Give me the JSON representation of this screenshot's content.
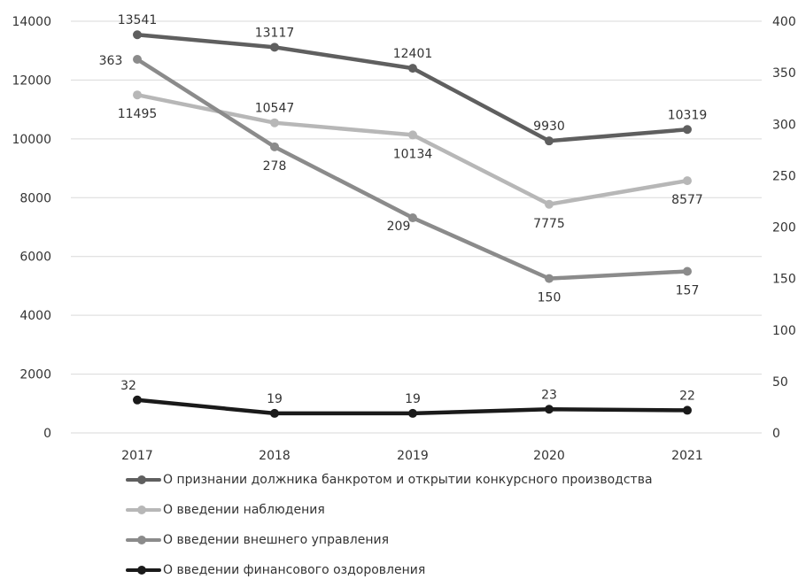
{
  "chart_data": {
    "type": "line",
    "categories": [
      "2017",
      "2018",
      "2019",
      "2020",
      "2021"
    ],
    "y_left": {
      "ticks": [
        "0",
        "2000",
        "4000",
        "6000",
        "8000",
        "10000",
        "12000",
        "14000"
      ],
      "range": [
        0,
        14000
      ]
    },
    "y_right": {
      "ticks": [
        "0",
        "50",
        "100",
        "150",
        "200",
        "250",
        "300",
        "350",
        "400"
      ],
      "range": [
        0,
        400
      ]
    },
    "grid": true,
    "legend_position": "bottom",
    "series": [
      {
        "name": "О признании должника банкротом и открытии конкурсного производства",
        "axis": "left",
        "color": "#5f5f5f",
        "values": [
          13541,
          13117,
          12401,
          9930,
          10319
        ],
        "labels": [
          "13541",
          "13117",
          "12401",
          "9930",
          "10319"
        ]
      },
      {
        "name": "О введении наблюдения",
        "axis": "left",
        "color": "#b7b7b7",
        "values": [
          11495,
          10547,
          10134,
          7775,
          8577
        ],
        "labels": [
          "11495",
          "10547",
          "10134",
          "7775",
          "8577"
        ]
      },
      {
        "name": "О введении внешнего управления",
        "axis": "right",
        "color": "#8b8b8b",
        "values": [
          363,
          278,
          209,
          150,
          157
        ],
        "labels": [
          "363",
          "278",
          "209",
          "150",
          "157"
        ]
      },
      {
        "name": "О введении финансового оздоровления",
        "axis": "right",
        "color": "#1a1a1a",
        "values": [
          32,
          19,
          19,
          23,
          22
        ],
        "labels": [
          "32",
          "19",
          "19",
          "23",
          "22"
        ]
      }
    ]
  }
}
